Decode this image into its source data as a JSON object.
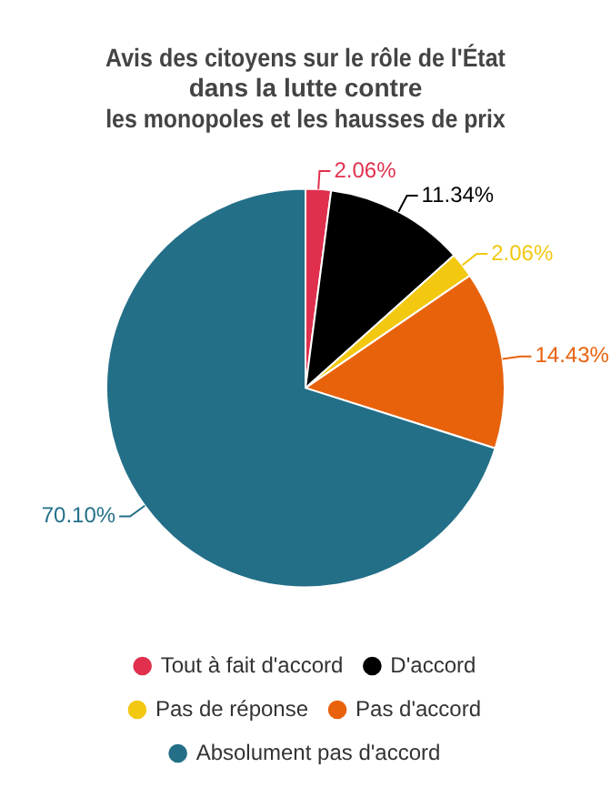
{
  "chart_data": {
    "type": "pie",
    "title": [
      "Avis des citoyens sur le rôle de l'État",
      "dans la lutte contre",
      "les monopoles et les hausses de prix"
    ],
    "categories": [
      "Tout à fait d'accord",
      "D'accord",
      "Pas de réponse",
      "Pas d'accord",
      "Absolument pas d'accord"
    ],
    "values": [
      2.06,
      11.34,
      2.06,
      14.43,
      70.1
    ],
    "colors": [
      "#e0304e",
      "#000000",
      "#f2c811",
      "#e8620c",
      "#236f88"
    ],
    "value_labels": [
      "2.06%",
      "11.34%",
      "2.06%",
      "14.43%",
      "70.10%"
    ],
    "legend": "bottom"
  }
}
